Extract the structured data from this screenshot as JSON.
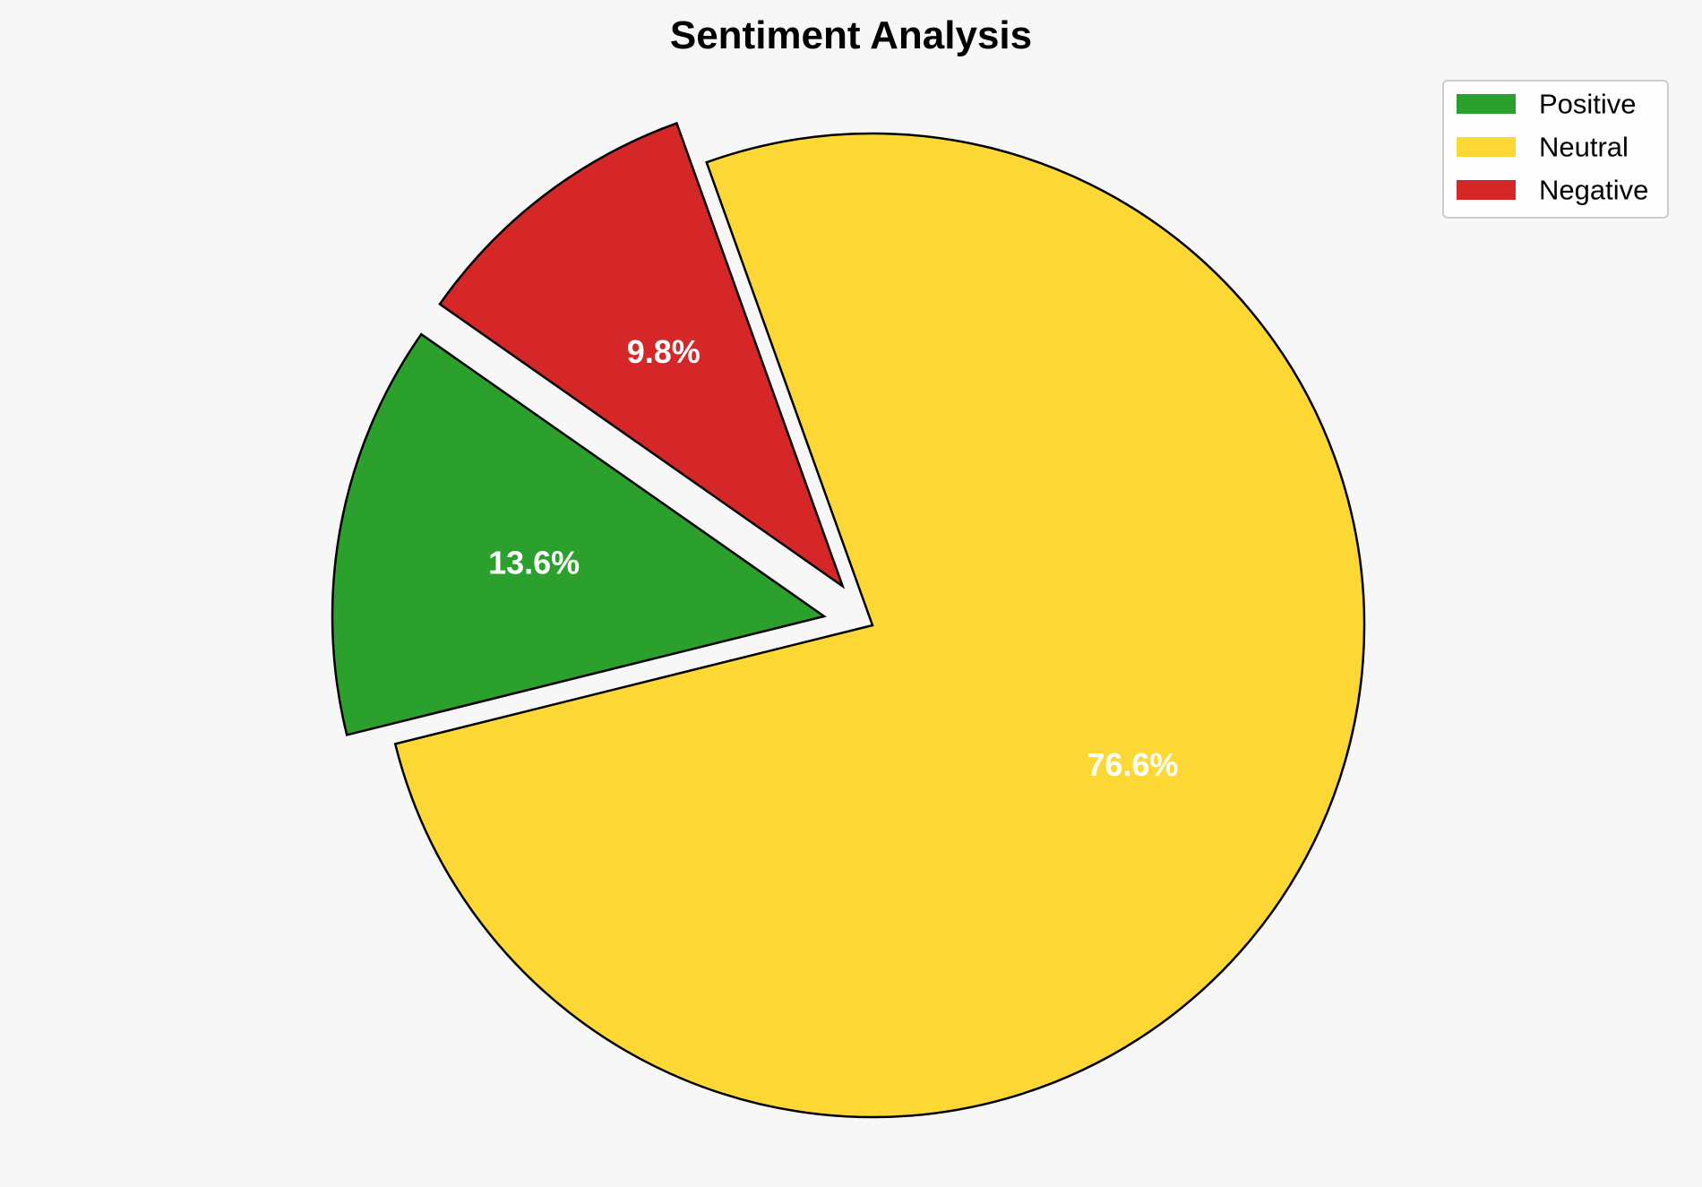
{
  "chart_data": {
    "type": "pie",
    "title": "Sentiment Analysis",
    "slices": [
      {
        "label": "Positive",
        "value": 13.6,
        "display": "13.6%",
        "color": "#2ca02c",
        "exploded": true
      },
      {
        "label": "Neutral",
        "value": 76.6,
        "display": "76.6%",
        "color": "#fdd835",
        "exploded": false
      },
      {
        "label": "Negative",
        "value": 9.8,
        "display": "9.8%",
        "color": "#d62728",
        "exploded": true
      }
    ],
    "legend": {
      "placement": "top-right",
      "entries": [
        "Positive",
        "Neutral",
        "Negative"
      ]
    },
    "label_color": "#ffffff",
    "edge_color": "#000000"
  }
}
